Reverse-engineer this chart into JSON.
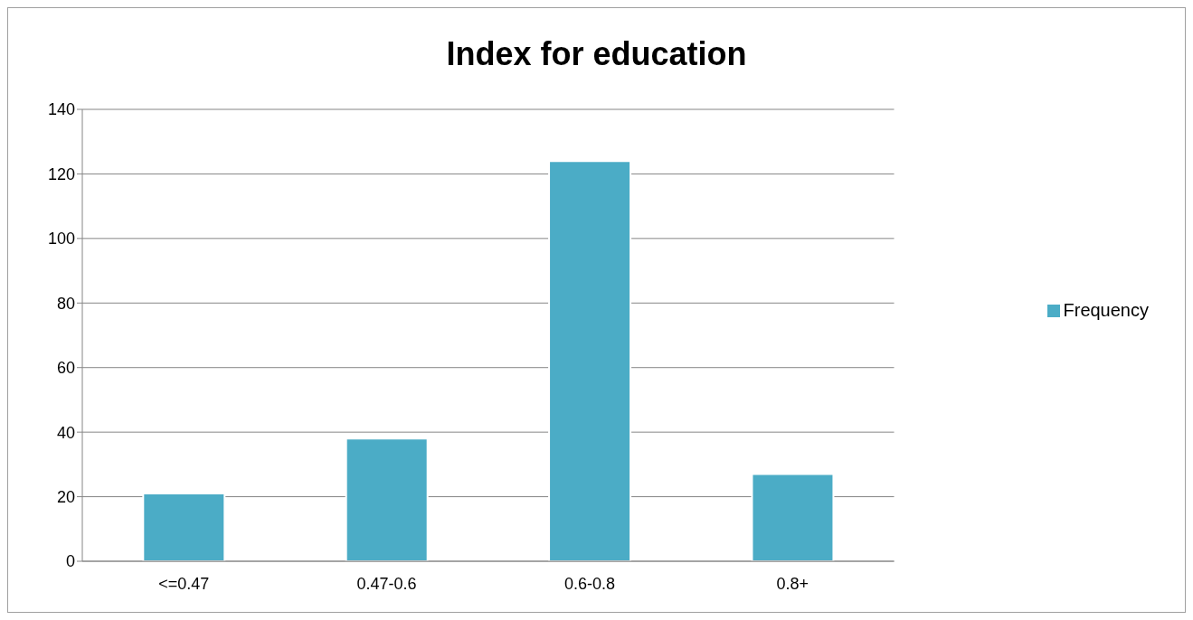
{
  "chart_data": {
    "type": "bar",
    "title": "Index for education",
    "categories": [
      "<=0.47",
      "0.47-0.6",
      "0.6-0.8",
      "0.8+"
    ],
    "series": [
      {
        "name": "Frequency",
        "color": "#4bacc6",
        "values": [
          21,
          38,
          124,
          27
        ]
      }
    ],
    "ylim": [
      0,
      140
    ],
    "yticks": [
      0,
      20,
      40,
      60,
      80,
      100,
      120,
      140
    ],
    "grid": "y",
    "legend": "right"
  }
}
